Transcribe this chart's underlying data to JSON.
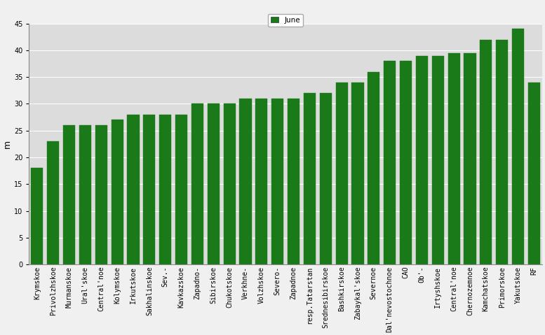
{
  "categories": [
    "Krymskoe",
    "Privolzhskoe",
    "Murmanskoe",
    "Ural'skoe",
    "Central'noe",
    "Kolymskoe",
    "Irkutskoe",
    "Sakhalinskoe",
    "Sev.-",
    "Kavkazskoe",
    "Zapadno-",
    "Sibirskoe",
    "Chukotskoe",
    "Verkhne-",
    "Volzhskoe",
    "Severo-",
    "Zapadnoe",
    "resp.Tatarstan",
    "Srednesibirskoe",
    "Bashkirskoe",
    "Zabaykal'skoe",
    "Severnoe",
    "Dal'nevostochnoe",
    "CAO",
    "Ob'-",
    "Irtyshskoe",
    "Central'noe",
    "Chernozemnoe",
    "Kamchatskoe",
    "Primorskoe",
    "Yakutskoe",
    "RF"
  ],
  "values": [
    18.0,
    23.0,
    26.0,
    26.0,
    26.0,
    27.0,
    28.0,
    28.0,
    28.0,
    28.0,
    30.0,
    30.0,
    30.0,
    31.0,
    31.0,
    31.0,
    31.0,
    32.0,
    32.0,
    34.0,
    34.0,
    36.0,
    38.0,
    38.0,
    39.0,
    39.0,
    39.5,
    39.5,
    42.0,
    42.0,
    44.0,
    34.0
  ],
  "bar_color": "#1a7a1a",
  "ylabel": "m",
  "ylim": [
    0,
    45
  ],
  "yticks": [
    0,
    5,
    10,
    15,
    20,
    25,
    30,
    35,
    40,
    45
  ],
  "legend_label": "June",
  "legend_color": "#1a7a1a",
  "background_color": "#dcdcdc",
  "grid_color": "#ffffff",
  "tick_fontsize": 7,
  "ylabel_fontsize": 9
}
